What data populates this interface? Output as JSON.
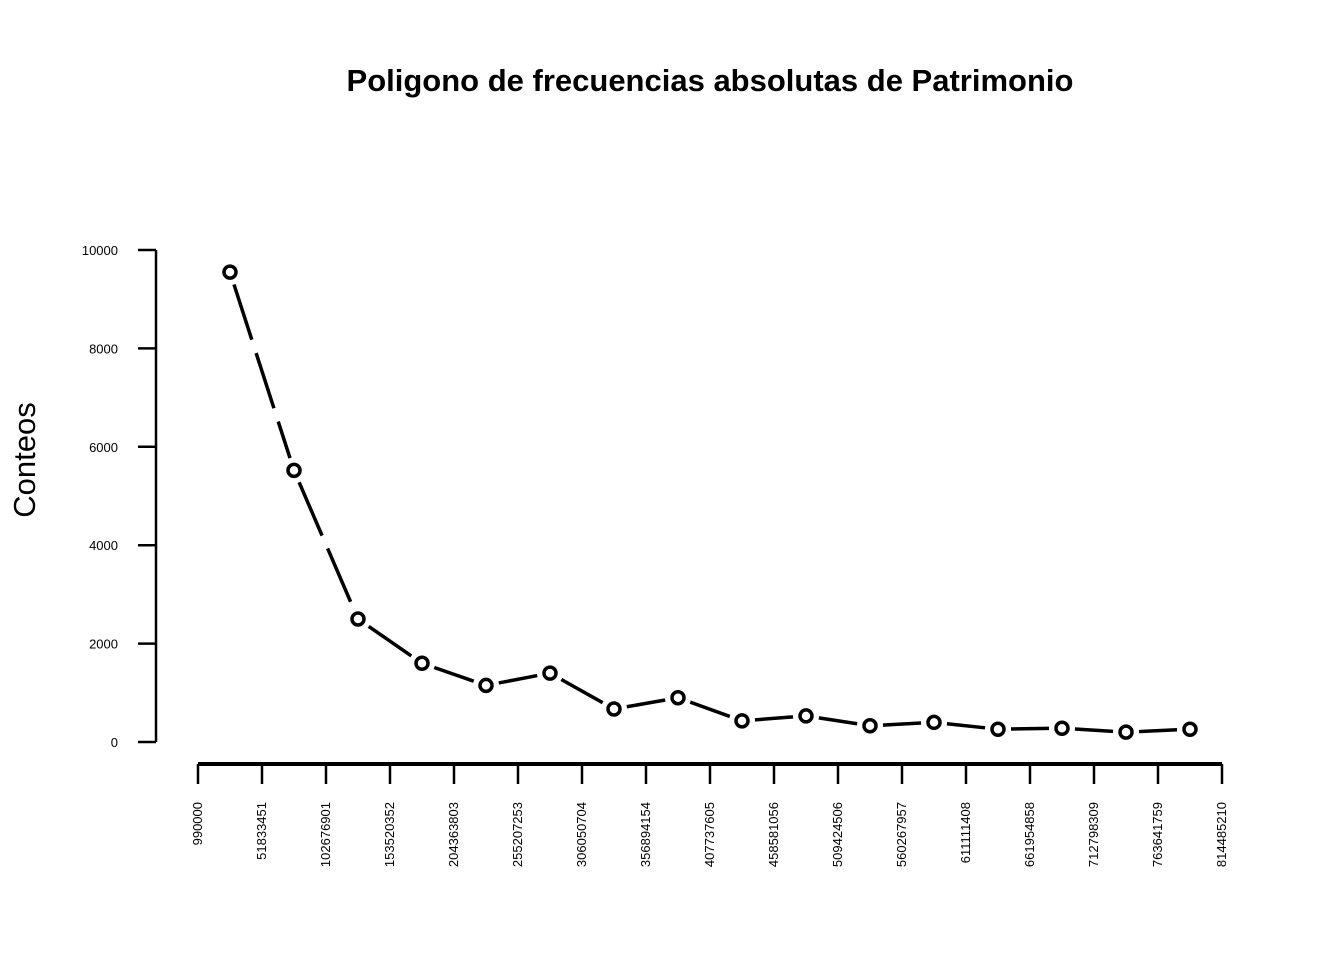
{
  "chart_data": {
    "type": "line",
    "title": "Poligono de frecuencias absolutas de Patrimonio",
    "xlabel": "",
    "ylabel": "Conteos",
    "x_tick_labels": [
      "990000",
      "51833451",
      "102676901",
      "153520352",
      "204363803",
      "255207253",
      "306050704",
      "356894154",
      "407737605",
      "458581056",
      "509424506",
      "560267957",
      "611111408",
      "661954858",
      "712798309",
      "763641759",
      "814485210"
    ],
    "x_ticks": [
      990000,
      51833451,
      102676901,
      153520352,
      204363803,
      255207253,
      306050704,
      356894154,
      407737605,
      458581056,
      509424506,
      560267957,
      611111408,
      661954858,
      712798309,
      763641759,
      814485210
    ],
    "y_tick_labels": [
      "0",
      "2000",
      "4000",
      "6000",
      "8000",
      "10000"
    ],
    "y_ticks": [
      0,
      2000,
      4000,
      6000,
      8000,
      10000
    ],
    "ylim": [
      0,
      10000
    ],
    "xlim": [
      990000,
      814485210
    ],
    "series": [
      {
        "x": [
          26411725,
          77255176,
          128098626,
          178942077,
          229785528,
          280628978,
          331472429,
          382315879,
          433159330,
          484002781,
          534846231,
          585689682,
          636533133,
          687376583,
          738220034,
          789063484
        ],
        "values": [
          9550,
          5520,
          2500,
          1600,
          1150,
          1400,
          670,
          900,
          430,
          530,
          330,
          400,
          260,
          280,
          200,
          260
        ]
      }
    ],
    "line_style": "dashed",
    "marker": "open-circle",
    "grid": false,
    "legend": "none"
  }
}
